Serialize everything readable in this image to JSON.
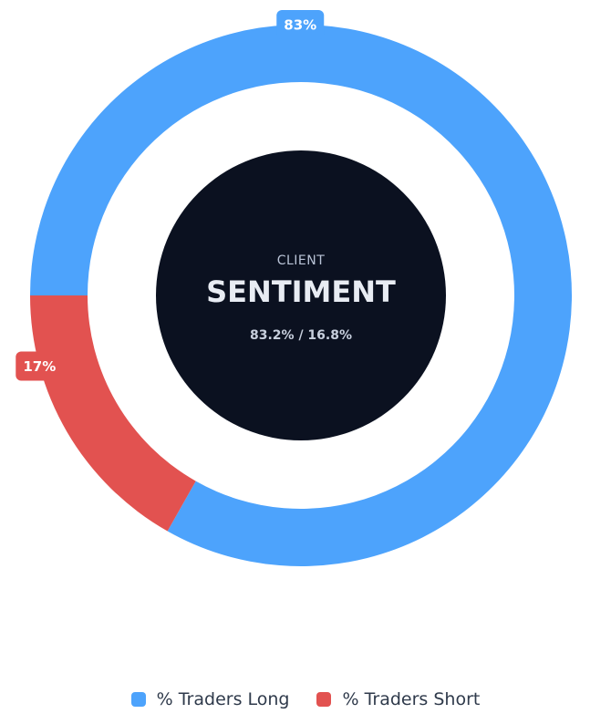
{
  "chart_data": {
    "type": "pie",
    "variant": "donut",
    "series": [
      {
        "name": "% Traders Long",
        "value": 83.2,
        "label": "83%",
        "color": "#4da3fc"
      },
      {
        "name": "% Traders Short",
        "value": 16.8,
        "label": "17%",
        "color": "#e25250"
      }
    ],
    "center": {
      "kicker": "CLIENT",
      "title": "SENTIMENT",
      "ratio": "83.2% / 16.8%"
    },
    "legend_position": "bottom"
  },
  "colors": {
    "center_fill": "#0b1120",
    "background": "#ffffff"
  }
}
